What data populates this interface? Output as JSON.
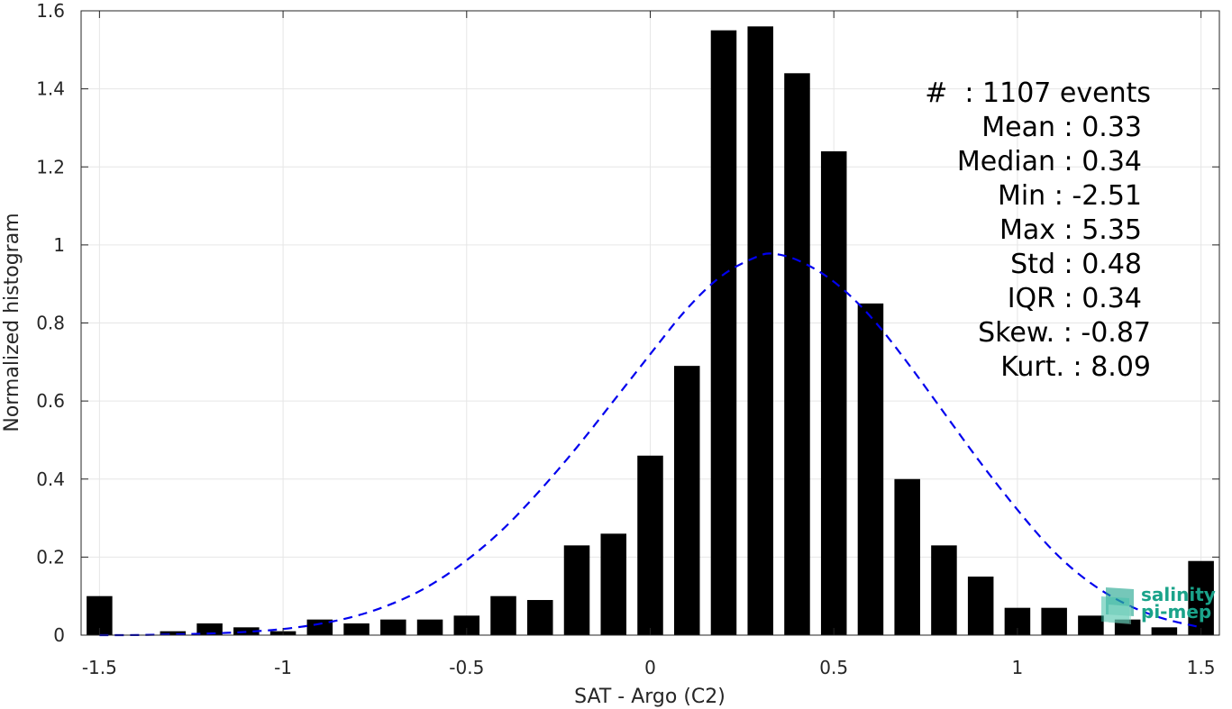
{
  "chart_data": {
    "type": "bar",
    "xlabel": "SAT - Argo (C2)",
    "ylabel": "Normalized histogram",
    "xlim": [
      -1.55,
      1.55
    ],
    "ylim": [
      0,
      1.6
    ],
    "xticks": [
      -1.5,
      -1,
      -0.5,
      0,
      0.5,
      1,
      1.5
    ],
    "xtick_labels": [
      "-1.5",
      "-1",
      "-0.5",
      "0",
      "0.5",
      "1",
      "1.5"
    ],
    "yticks": [
      0,
      0.2,
      0.4,
      0.6,
      0.8,
      1,
      1.2,
      1.4,
      1.6
    ],
    "ytick_labels": [
      "0",
      "0.2",
      "0.4",
      "0.6",
      "0.8",
      "1",
      "1.2",
      "1.4",
      "1.6"
    ],
    "grid": true,
    "bar_width": 0.07,
    "bar_color": "#000000",
    "x": [
      -1.5,
      -1.4,
      -1.3,
      -1.2,
      -1.1,
      -1.0,
      -0.9,
      -0.8,
      -0.7,
      -0.6,
      -0.5,
      -0.4,
      -0.3,
      -0.2,
      -0.1,
      0.0,
      0.1,
      0.2,
      0.3,
      0.4,
      0.5,
      0.6,
      0.7,
      0.8,
      0.9,
      1.0,
      1.1,
      1.2,
      1.3,
      1.4,
      1.5
    ],
    "values": [
      0.1,
      0.0,
      0.01,
      0.03,
      0.02,
      0.01,
      0.04,
      0.03,
      0.04,
      0.04,
      0.05,
      0.1,
      0.09,
      0.23,
      0.26,
      0.46,
      0.69,
      1.55,
      1.56,
      1.44,
      1.24,
      0.85,
      0.4,
      0.23,
      0.15,
      0.07,
      0.07,
      0.05,
      0.04,
      0.02,
      0.19
    ],
    "fit_curve": {
      "style": "dashed",
      "color": "#0000ee",
      "x": [
        -1.5,
        -1.4,
        -1.3,
        -1.2,
        -1.1,
        -1.0,
        -0.9,
        -0.8,
        -0.7,
        -0.6,
        -0.5,
        -0.4,
        -0.3,
        -0.2,
        -0.1,
        0.0,
        0.1,
        0.2,
        0.3,
        0.33,
        0.4,
        0.5,
        0.6,
        0.7,
        0.8,
        0.9,
        1.0,
        1.1,
        1.2,
        1.3,
        1.4,
        1.5
      ],
      "y": [
        0.0,
        0.0,
        0.002,
        0.004,
        0.008,
        0.015,
        0.028,
        0.048,
        0.08,
        0.125,
        0.19,
        0.27,
        0.37,
        0.48,
        0.6,
        0.72,
        0.84,
        0.93,
        0.975,
        0.98,
        0.965,
        0.91,
        0.82,
        0.7,
        0.57,
        0.44,
        0.32,
        0.21,
        0.13,
        0.075,
        0.04,
        0.02
      ]
    },
    "stats": [
      {
        "label": "#  : 1107 events"
      },
      {
        "label": "Mean : 0.33"
      },
      {
        "label": "Median : 0.34"
      },
      {
        "label": "Min : -2.51"
      },
      {
        "label": "Max : 5.35"
      },
      {
        "label": "Std : 0.48"
      },
      {
        "label": "IQR : 0.34"
      },
      {
        "label": "Skew. : -0.87"
      },
      {
        "label": "Kurt. : 8.09"
      }
    ]
  },
  "logo": {
    "line1": "salinity",
    "line2": "pi-mep",
    "color": "#1aa38a"
  }
}
